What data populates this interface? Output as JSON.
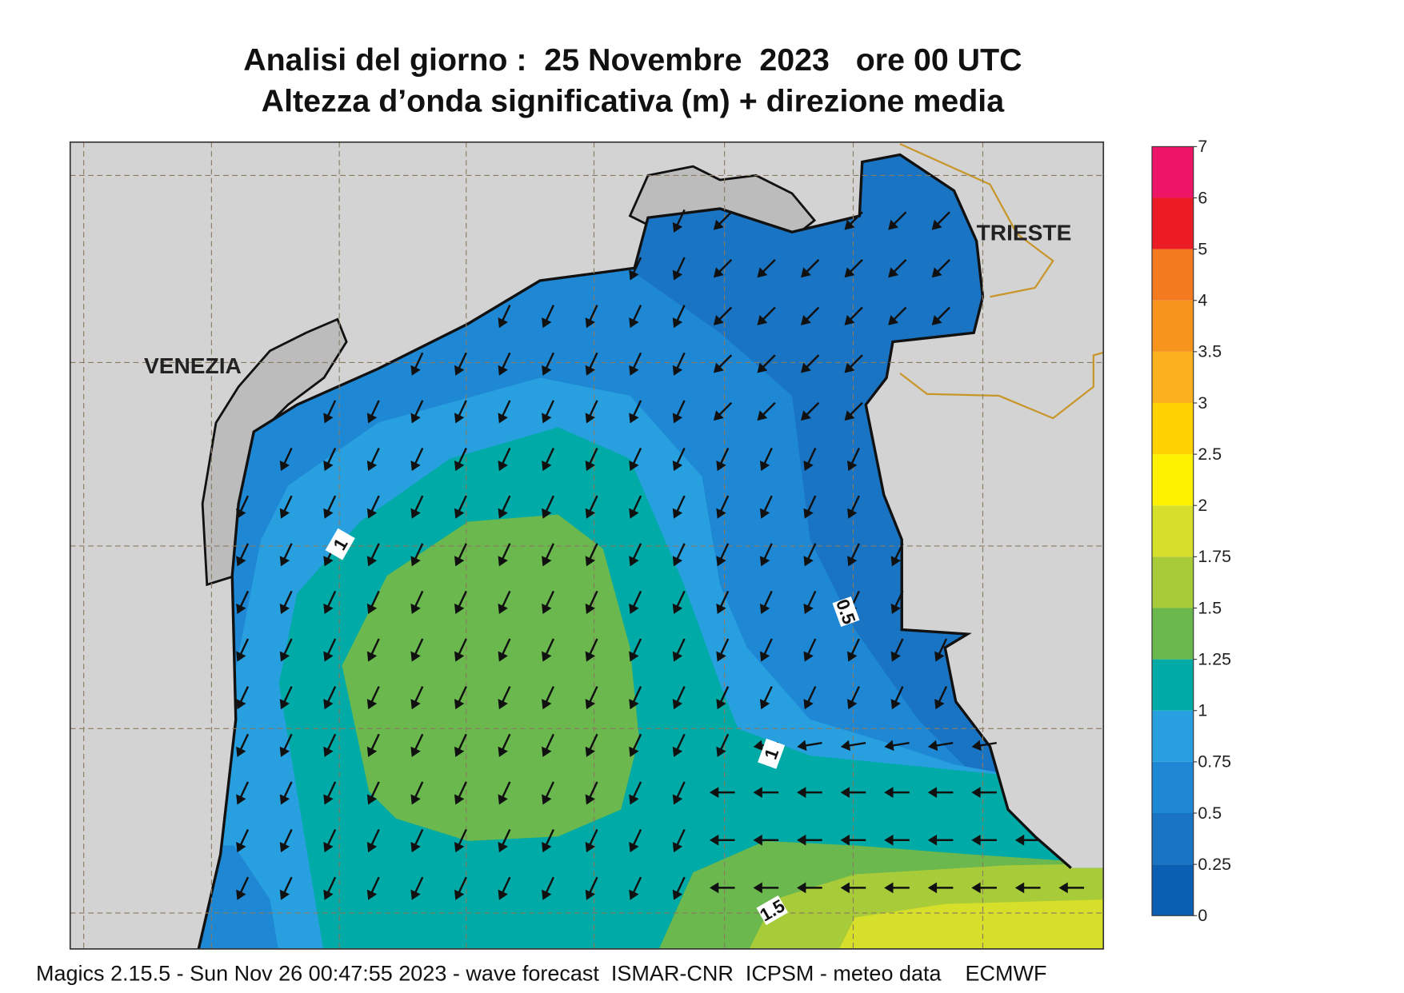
{
  "header": {
    "title": "Analisi del giorno :  25 Novembre  2023   ore 00 UTC",
    "subtitle": "Altezza d’onda significativa (m) + direzione media"
  },
  "map": {
    "places": [
      "VENEZIA",
      "TRIESTE"
    ],
    "contour_labels": [
      "1",
      "0.5",
      "1",
      "1.5"
    ]
  },
  "colorbar": {
    "ticks": [
      0,
      0.25,
      0.5,
      0.75,
      1,
      1.25,
      1.5,
      1.75,
      2,
      2.5,
      3,
      3.5,
      4,
      5,
      6,
      7
    ],
    "colors": [
      "#0b5fb3",
      "#1a74c4",
      "#1f88d4",
      "#28a0e0",
      "#00aaa6",
      "#6ab84e",
      "#a8cb3a",
      "#d6df2a",
      "#fff200",
      "#ffd200",
      "#fbb01f",
      "#f7941d",
      "#f47a20",
      "#ec1c24",
      "#ee1466"
    ]
  },
  "footer": "Magics 2.15.5 - Sun Nov 26 00:47:55 2023 - wave forecast  ISMAR-CNR  ICPSM - meteo data    ECMWF"
}
